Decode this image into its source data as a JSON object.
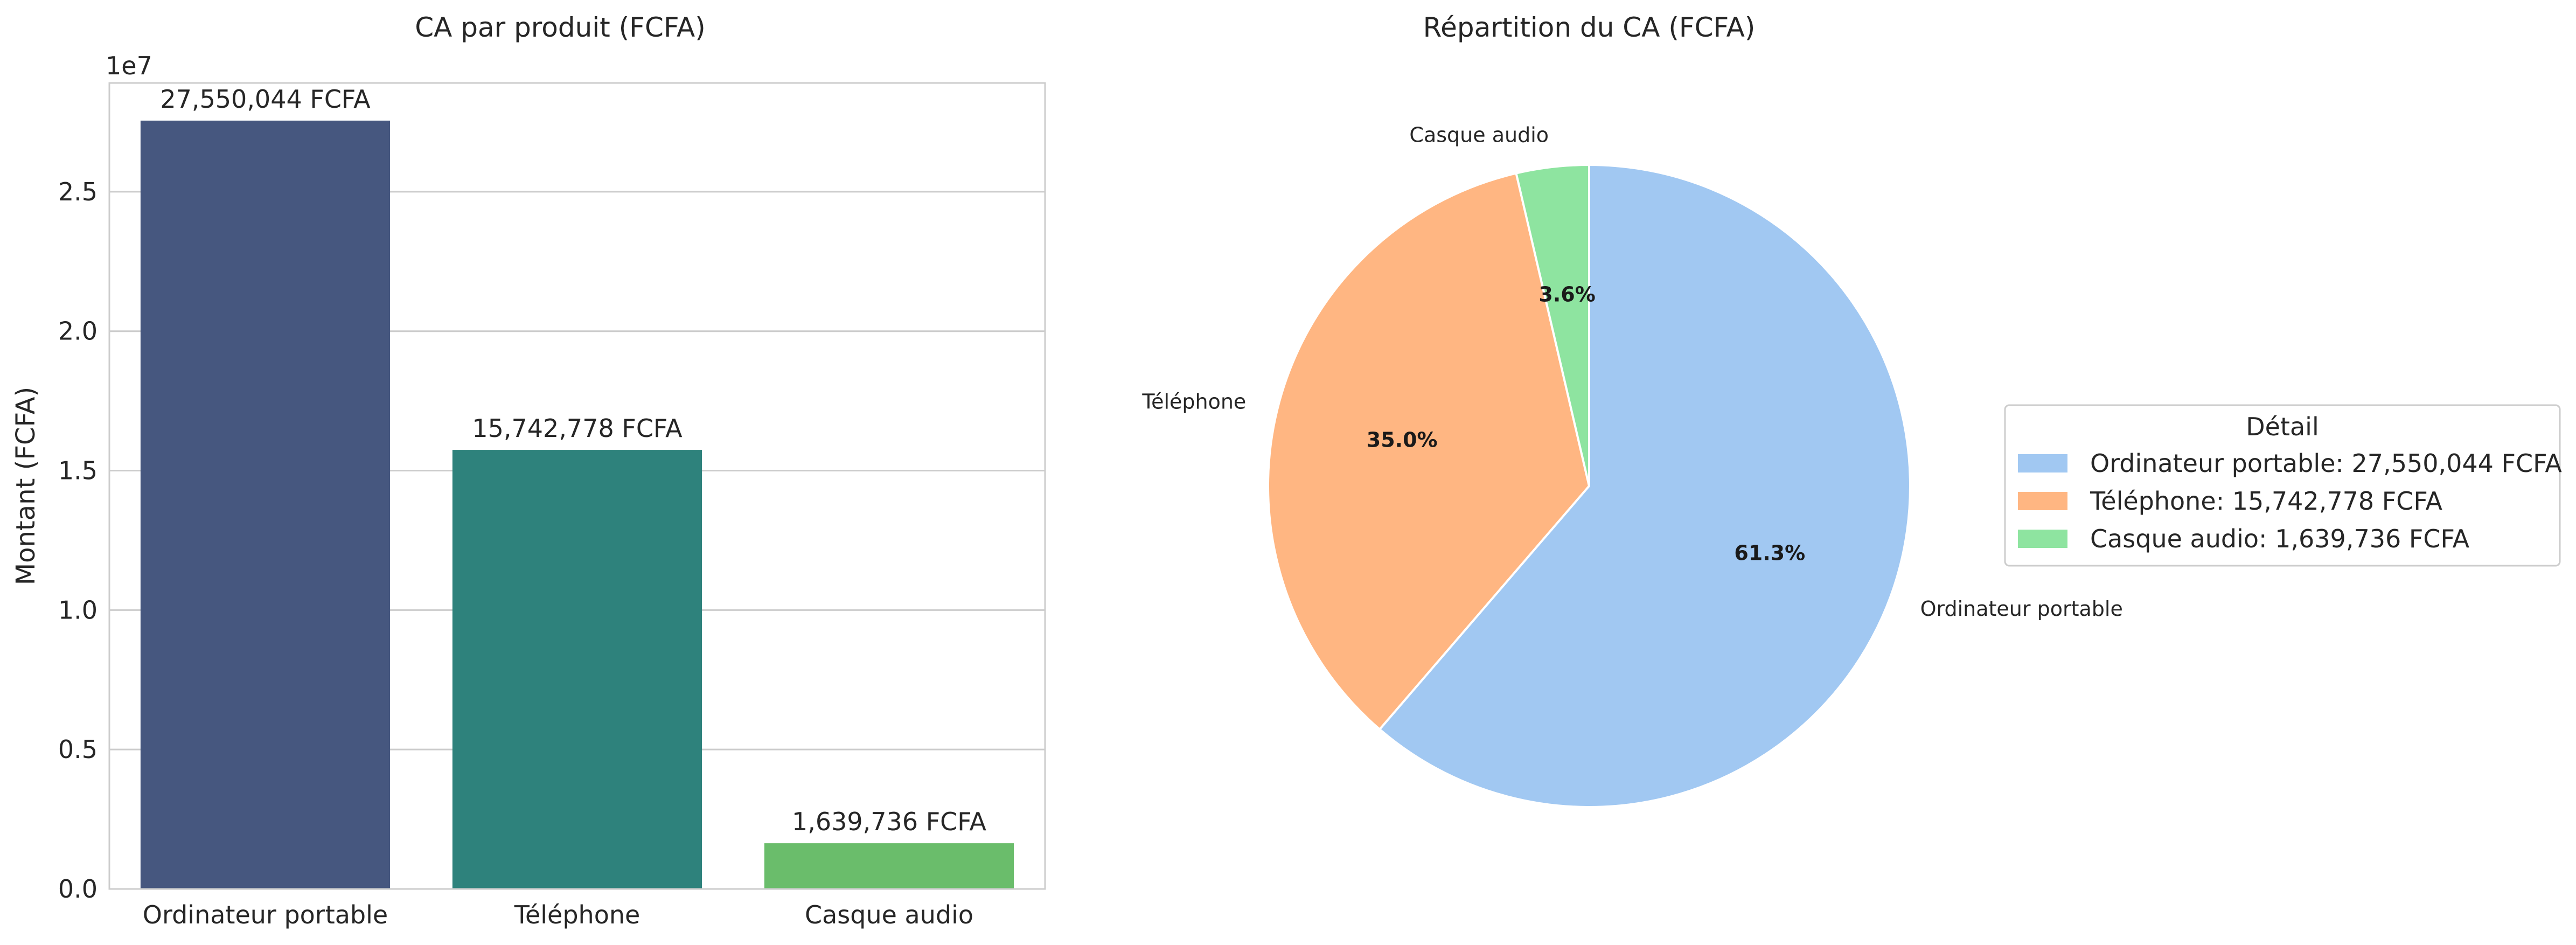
{
  "chart_data": [
    {
      "type": "bar",
      "title": "CA par produit (FCFA)",
      "xlabel": "",
      "ylabel": "Montant (FCFA)",
      "offset_text": "1e7",
      "categories": [
        "Ordinateur portable",
        "Téléphone",
        "Casque audio"
      ],
      "values": [
        27550044,
        15742778,
        1639736
      ],
      "value_labels": [
        "27,550,044 FCFA",
        "15,742,778 FCFA",
        "1,639,736 FCFA"
      ],
      "colors": [
        "#46577f",
        "#2e827c",
        "#6abd6b"
      ],
      "ylim": [
        0,
        28900000
      ],
      "yticks": [
        0,
        5000000,
        10000000,
        15000000,
        20000000,
        25000000
      ],
      "ytick_labels": [
        "0.0",
        "0.5",
        "1.0",
        "1.5",
        "2.0",
        "2.5"
      ],
      "grid": true
    },
    {
      "type": "pie",
      "title": "Répartition du CA (FCFA)",
      "labels": [
        "Ordinateur portable",
        "Téléphone",
        "Casque audio"
      ],
      "values": [
        27550044,
        15742778,
        1639736
      ],
      "percent_labels": [
        "61.3%",
        "35.0%",
        "3.6%"
      ],
      "colors": [
        "#a1c8f2",
        "#ffb682",
        "#8ee4a0"
      ],
      "start_angle_deg": 90,
      "direction": "clockwise",
      "legend": {
        "title": "Détail",
        "placement": "right",
        "entries": [
          "Ordinateur portable: 27,550,044 FCFA",
          "Téléphone: 15,742,778 FCFA",
          "Casque audio: 1,639,736 FCFA"
        ]
      }
    }
  ]
}
